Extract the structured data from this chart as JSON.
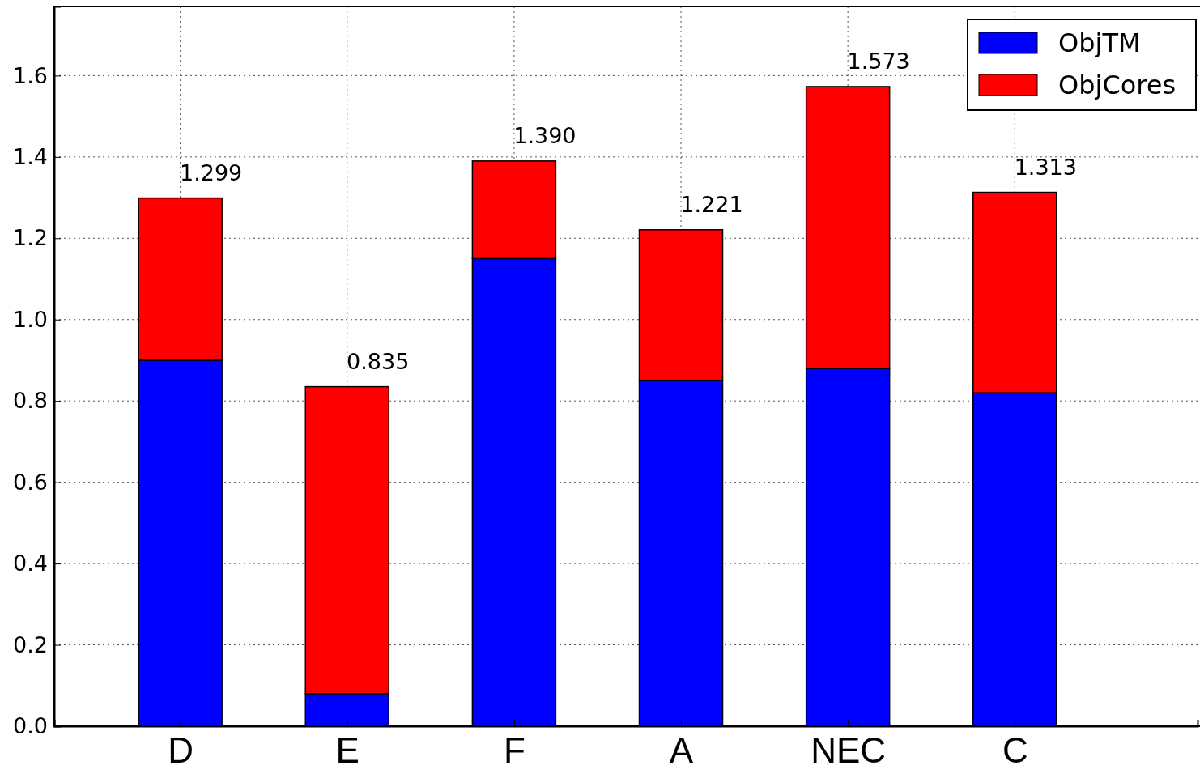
{
  "chart_data": {
    "type": "bar",
    "stacked": true,
    "categories": [
      "D",
      "E",
      "F",
      "A",
      "NEC",
      "C"
    ],
    "series": [
      {
        "name": "ObjTM",
        "color": "#0000ff",
        "values": [
          0.9,
          0.08,
          1.15,
          0.85,
          0.88,
          0.82
        ]
      },
      {
        "name": "ObjCores",
        "color": "#ff0000",
        "values": [
          0.399,
          0.755,
          0.24,
          0.371,
          0.693,
          0.493
        ]
      }
    ],
    "totals": [
      "1.299",
      "0.835",
      "1.390",
      "1.221",
      "1.573",
      "1.313"
    ],
    "ylim": [
      0,
      1.77
    ],
    "yticks": [
      {
        "value": 0,
        "label": "0.0"
      },
      0.2,
      0.4,
      0.6,
      0.8,
      {
        "value": 1,
        "label": "1.0"
      },
      1.2,
      1.4,
      1.6
    ],
    "grid": true,
    "legend": "top right"
  }
}
